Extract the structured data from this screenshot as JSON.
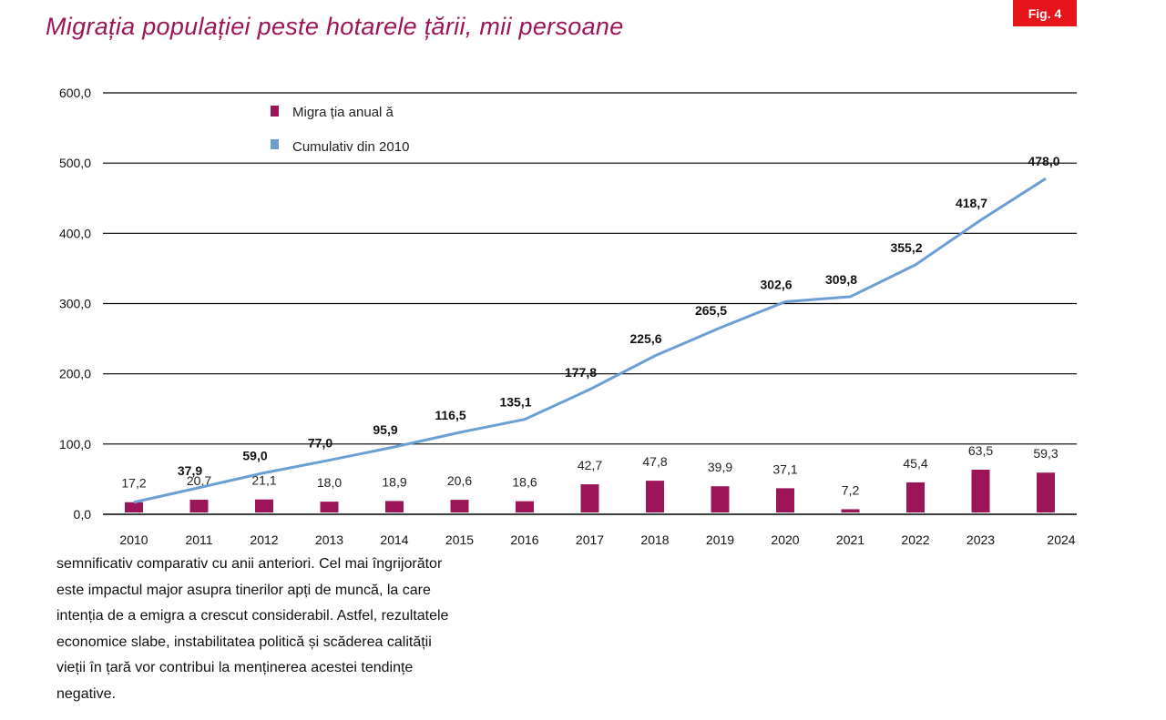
{
  "title": "Migrația populației peste hotarele țării, mii persoane",
  "fig_label": "Fig. 4",
  "chart_data": {
    "type": "bar+line",
    "title": "Migrația populației peste hotarele țării, mii persoane",
    "categories": [
      "2010",
      "2011",
      "2012",
      "2013",
      "2014",
      "2015",
      "2016",
      "2017",
      "2018",
      "2019",
      "2020",
      "2021",
      "2022",
      "2023",
      "2024"
    ],
    "series": [
      {
        "name": "Migra ția anual ă",
        "type": "bar",
        "color": "#9c1559",
        "values": [
          17.2,
          20.7,
          21.1,
          18.0,
          18.9,
          20.6,
          18.6,
          42.7,
          47.8,
          39.9,
          37.1,
          7.2,
          45.4,
          63.5,
          59.3
        ],
        "labels": [
          "17,2",
          "20,7",
          "21,1",
          "18,0",
          "18,9",
          "20,6",
          "18,6",
          "42,7",
          "47,8",
          "39,9",
          "37,1",
          "7,2",
          "45,4",
          "63,5",
          "59,3"
        ]
      },
      {
        "name": "Cumulativ  din 2010",
        "type": "line",
        "color": "#6b9fd4",
        "values": [
          17.2,
          37.9,
          59.0,
          77.0,
          95.9,
          116.5,
          135.1,
          177.8,
          225.6,
          265.5,
          302.6,
          309.8,
          355.2,
          418.7,
          478.0
        ],
        "labels": [
          "",
          "37,9",
          "59,0",
          "77,0",
          "95,9",
          "116,5",
          "135,1",
          "177,8",
          "225,6",
          "265,5",
          "302,6",
          "309,8",
          "355,2",
          "418,7",
          "478,0"
        ]
      }
    ],
    "ylim": [
      0,
      600
    ],
    "yticks": [
      0,
      100,
      200,
      300,
      400,
      500,
      600
    ],
    "ytick_labels": [
      "0,0",
      "100,0",
      "200,0",
      "300,0",
      "400,0",
      "500,0",
      "600,0"
    ],
    "grid": true,
    "legend": "top-left"
  },
  "paragraph": [
    "semnificativ comparativ cu anii anteriori. Cel mai îngrijorător",
    "este impactul major asupra tinerilor apți de muncă, la care",
    "intenția de a emigra a crescut considerabil. Astfel, rezultatele",
    "economice slabe, instabilitatea politică și scăderea calității",
    "vieții în țară vor contribui la menținerea acestei tendințe",
    "negative."
  ]
}
